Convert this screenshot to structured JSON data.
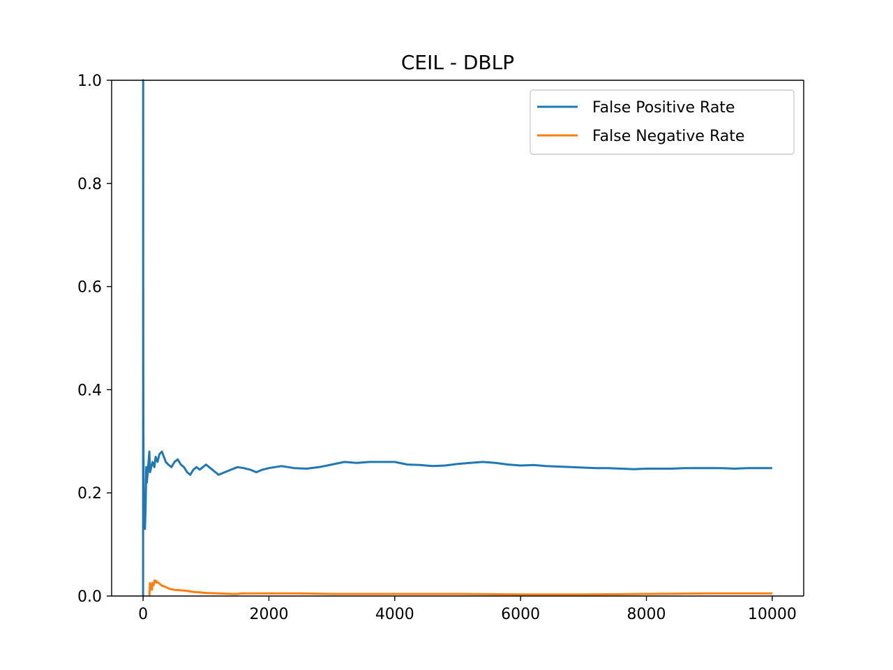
{
  "chart_data": {
    "type": "line",
    "title": "CEIL - DBLP",
    "xlabel": "",
    "ylabel": "",
    "xlim": [
      -500,
      10500
    ],
    "ylim": [
      0.0,
      1.0
    ],
    "xticks": [
      0,
      2000,
      4000,
      6000,
      8000,
      10000
    ],
    "xtick_labels": [
      "0",
      "2000",
      "4000",
      "6000",
      "8000",
      "10000"
    ],
    "yticks": [
      0.0,
      0.2,
      0.4,
      0.6,
      0.8,
      1.0
    ],
    "ytick_labels": [
      "0.0",
      "0.2",
      "0.4",
      "0.6",
      "0.8",
      "1.0"
    ],
    "grid": false,
    "legend_position": "upper right",
    "series": [
      {
        "name": "False Positive Rate",
        "color": "#1f77b4",
        "x": [
          0,
          1,
          2,
          5,
          10,
          20,
          30,
          40,
          50,
          60,
          80,
          100,
          110,
          130,
          150,
          180,
          200,
          230,
          260,
          300,
          330,
          360,
          400,
          450,
          500,
          550,
          600,
          650,
          700,
          750,
          800,
          850,
          900,
          950,
          1000,
          1050,
          1100,
          1150,
          1200,
          1300,
          1400,
          1500,
          1600,
          1700,
          1800,
          1900,
          2000,
          2200,
          2400,
          2600,
          2800,
          3000,
          3200,
          3400,
          3600,
          3800,
          4000,
          4200,
          4400,
          4600,
          4800,
          5000,
          5200,
          5400,
          5600,
          5800,
          6000,
          6200,
          6400,
          6600,
          6800,
          7000,
          7200,
          7400,
          7600,
          7800,
          8000,
          8200,
          8400,
          8600,
          8800,
          9000,
          9200,
          9400,
          9600,
          9800,
          10000
        ],
        "y": [
          0.0,
          1.0,
          0.5,
          0.33,
          0.2,
          0.14,
          0.13,
          0.17,
          0.25,
          0.22,
          0.25,
          0.28,
          0.24,
          0.25,
          0.26,
          0.25,
          0.27,
          0.26,
          0.275,
          0.28,
          0.27,
          0.26,
          0.255,
          0.25,
          0.26,
          0.265,
          0.255,
          0.25,
          0.24,
          0.235,
          0.245,
          0.25,
          0.245,
          0.25,
          0.255,
          0.25,
          0.245,
          0.24,
          0.235,
          0.24,
          0.245,
          0.25,
          0.248,
          0.245,
          0.24,
          0.245,
          0.248,
          0.252,
          0.248,
          0.247,
          0.25,
          0.255,
          0.26,
          0.258,
          0.26,
          0.26,
          0.26,
          0.255,
          0.254,
          0.252,
          0.253,
          0.256,
          0.258,
          0.26,
          0.258,
          0.255,
          0.253,
          0.254,
          0.252,
          0.251,
          0.25,
          0.249,
          0.248,
          0.248,
          0.247,
          0.246,
          0.247,
          0.247,
          0.247,
          0.248,
          0.248,
          0.248,
          0.248,
          0.247,
          0.248,
          0.248,
          0.248
        ]
      },
      {
        "name": "False Negative Rate",
        "color": "#ff7f0e",
        "x": [
          100,
          110,
          120,
          130,
          140,
          150,
          160,
          170,
          180,
          190,
          200,
          210,
          220,
          250,
          300,
          350,
          400,
          450,
          500,
          600,
          700,
          800,
          900,
          1000,
          1200,
          1400,
          1500,
          1550,
          1600,
          1800,
          2000,
          2500,
          3000,
          4000,
          5000,
          6000,
          7000,
          8000,
          9000,
          10000
        ],
        "y": [
          0.0,
          0.025,
          0.02,
          0.02,
          0.012,
          0.025,
          0.02,
          0.022,
          0.03,
          0.028,
          0.03,
          0.026,
          0.028,
          0.025,
          0.02,
          0.018,
          0.015,
          0.013,
          0.012,
          0.011,
          0.01,
          0.008,
          0.007,
          0.006,
          0.005,
          0.004,
          0.004,
          0.005,
          0.005,
          0.005,
          0.005,
          0.005,
          0.004,
          0.004,
          0.004,
          0.003,
          0.003,
          0.004,
          0.005,
          0.005
        ]
      }
    ]
  }
}
